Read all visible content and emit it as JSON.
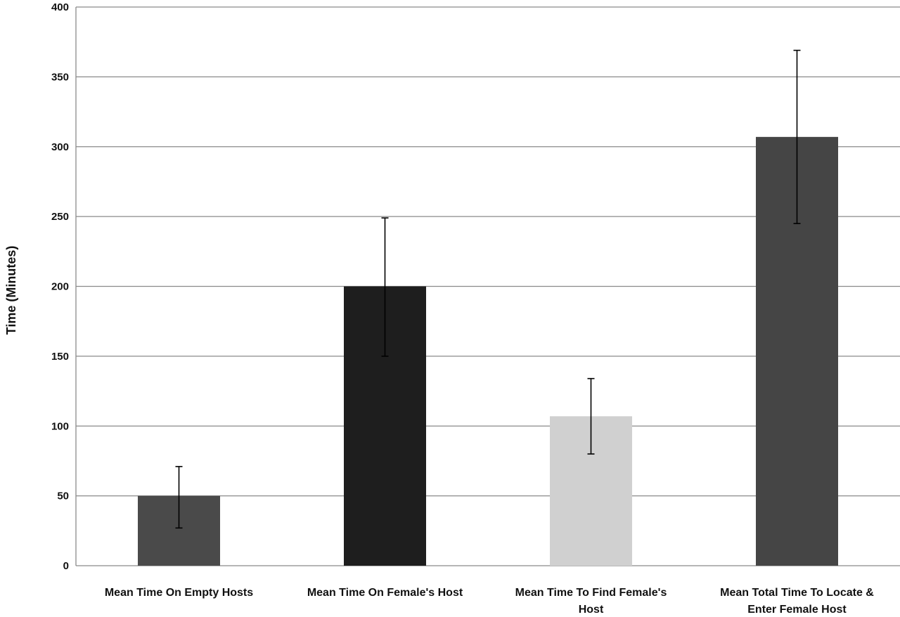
{
  "chart_data": {
    "type": "bar",
    "title": "",
    "xlabel": "",
    "ylabel": "Time (Minutes)",
    "ylim": [
      0,
      400
    ],
    "yticks": [
      0,
      50,
      100,
      150,
      200,
      250,
      300,
      350,
      400
    ],
    "grid": true,
    "categories": [
      [
        "Mean Time On Empty Hosts"
      ],
      [
        "Mean Time On Female's Host"
      ],
      [
        "Mean Time To Find Female's",
        "Host"
      ],
      [
        "Mean Total Time To Locate &",
        "Enter Female Host"
      ]
    ],
    "values": [
      50,
      200,
      107,
      307
    ],
    "error_low": [
      27,
      150,
      80,
      245
    ],
    "error_high": [
      71,
      249,
      134,
      369
    ],
    "colors": [
      "#4a4a4a",
      "#1e1e1e",
      "#d0d0d0",
      "#454545"
    ]
  }
}
